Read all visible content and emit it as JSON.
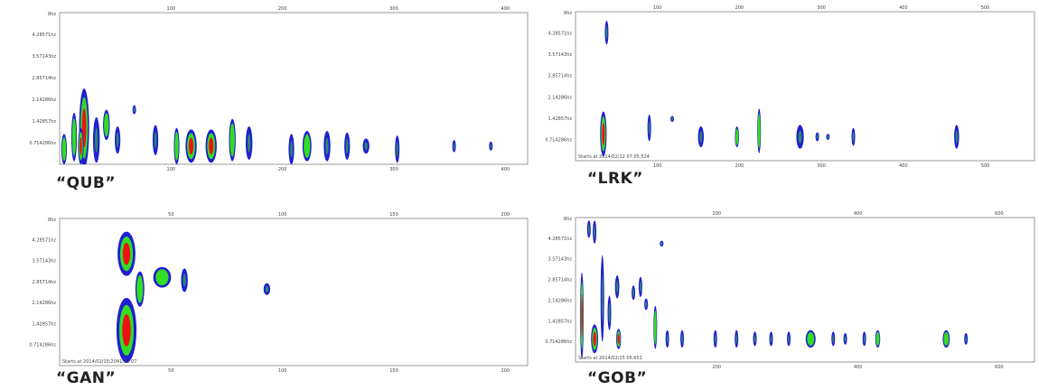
{
  "colors": {
    "outer": "#1f1fd0",
    "middle": "#33dd22",
    "core": "#ee1111",
    "frame": "#9a9a9a"
  },
  "chart_data": [
    {
      "type": "heatmap",
      "caption": "“QUB”",
      "y_top_label": "8hz",
      "yticks": [
        "4.28571hz",
        "3.57143hz",
        "2.85714hz",
        "2.14286hz",
        "1.42857hz",
        "0.714286hz"
      ],
      "xticks_top": [
        "100",
        "200",
        "300",
        "400"
      ],
      "xticks_bottom": [
        "100",
        "200",
        "300",
        "400"
      ],
      "starts_text": "",
      "xlim": [
        0,
        420
      ],
      "ylim": [
        0,
        5
      ],
      "blobs": [
        {
          "x": 4,
          "y": 0.5,
          "h": 1.0,
          "w": 5,
          "lvl": 2
        },
        {
          "x": 13,
          "y": 0.9,
          "h": 1.6,
          "w": 5,
          "lvl": 2
        },
        {
          "x": 22,
          "y": 1.2,
          "h": 2.6,
          "w": 9,
          "lvl": 3
        },
        {
          "x": 19,
          "y": 0.6,
          "h": 1.2,
          "w": 5,
          "lvl": 3
        },
        {
          "x": 33,
          "y": 0.8,
          "h": 1.5,
          "w": 6,
          "lvl": 1
        },
        {
          "x": 42,
          "y": 1.3,
          "h": 1.0,
          "w": 6,
          "lvl": 2
        },
        {
          "x": 52,
          "y": 0.8,
          "h": 0.9,
          "w": 5,
          "lvl": 1
        },
        {
          "x": 67,
          "y": 1.8,
          "h": 0.3,
          "w": 2,
          "lvl": 1
        },
        {
          "x": 86,
          "y": 0.8,
          "h": 1.0,
          "w": 5,
          "lvl": 1
        },
        {
          "x": 105,
          "y": 0.6,
          "h": 1.2,
          "w": 5,
          "lvl": 2
        },
        {
          "x": 118,
          "y": 0.6,
          "h": 1.1,
          "w": 10,
          "lvl": 3
        },
        {
          "x": 136,
          "y": 0.6,
          "h": 1.1,
          "w": 10,
          "lvl": 3
        },
        {
          "x": 155,
          "y": 0.8,
          "h": 1.4,
          "w": 6,
          "lvl": 2
        },
        {
          "x": 170,
          "y": 0.7,
          "h": 1.1,
          "w": 6,
          "lvl": 1
        },
        {
          "x": 208,
          "y": 0.5,
          "h": 1.0,
          "w": 5,
          "lvl": 1
        },
        {
          "x": 222,
          "y": 0.6,
          "h": 1.0,
          "w": 8,
          "lvl": 2
        },
        {
          "x": 240,
          "y": 0.6,
          "h": 1.0,
          "w": 6,
          "lvl": 1
        },
        {
          "x": 258,
          "y": 0.6,
          "h": 0.9,
          "w": 5,
          "lvl": 1
        },
        {
          "x": 275,
          "y": 0.6,
          "h": 0.5,
          "w": 6,
          "lvl": 1
        },
        {
          "x": 303,
          "y": 0.5,
          "h": 0.9,
          "w": 4,
          "lvl": 1
        },
        {
          "x": 354,
          "y": 0.6,
          "h": 0.4,
          "w": 3,
          "lvl": 1
        },
        {
          "x": 387,
          "y": 0.6,
          "h": 0.3,
          "w": 2,
          "lvl": 1
        }
      ]
    },
    {
      "type": "heatmap",
      "caption": "“LRK”",
      "y_top_label": "8hz",
      "yticks": [
        "4.28571hz",
        "3.57143hz",
        "2.85714hz",
        "2.14286hz",
        "1.42857hz",
        "0.714286hz"
      ],
      "xticks_top": [
        "100",
        "200",
        "300",
        "400",
        "500"
      ],
      "xticks_bottom": [
        "100",
        "200",
        "300",
        "400",
        "500"
      ],
      "starts_text": "Starts at 2014/02/12 07:05.524",
      "xlim": [
        0,
        560
      ],
      "ylim": [
        0,
        5
      ],
      "blobs": [
        {
          "x": 34,
          "y": 0.9,
          "h": 1.5,
          "w": 8,
          "lvl": 3
        },
        {
          "x": 38,
          "y": 4.3,
          "h": 0.8,
          "w": 4,
          "lvl": 1
        },
        {
          "x": 90,
          "y": 1.1,
          "h": 0.9,
          "w": 3,
          "lvl": 1
        },
        {
          "x": 118,
          "y": 1.4,
          "h": 0.2,
          "w": 2,
          "lvl": 1
        },
        {
          "x": 153,
          "y": 0.8,
          "h": 0.7,
          "w": 7,
          "lvl": 1
        },
        {
          "x": 197,
          "y": 0.8,
          "h": 0.7,
          "w": 5,
          "lvl": 2
        },
        {
          "x": 224,
          "y": 1.0,
          "h": 1.5,
          "w": 4,
          "lvl": 2
        },
        {
          "x": 274,
          "y": 0.8,
          "h": 0.8,
          "w": 9,
          "lvl": 1
        },
        {
          "x": 295,
          "y": 0.8,
          "h": 0.3,
          "w": 2,
          "lvl": 1
        },
        {
          "x": 308,
          "y": 0.8,
          "h": 0.2,
          "w": 1.5,
          "lvl": 1
        },
        {
          "x": 339,
          "y": 0.8,
          "h": 0.6,
          "w": 3,
          "lvl": 1
        },
        {
          "x": 465,
          "y": 0.8,
          "h": 0.8,
          "w": 6,
          "lvl": 1
        }
      ]
    },
    {
      "type": "heatmap",
      "caption": "“GAN”",
      "y_top_label": "8hz",
      "yticks": [
        "4.28571hz",
        "3.57143hz",
        "2.85714hz",
        "2.14286hz",
        "1.42857hz",
        "0.714286hz"
      ],
      "xticks_top": [
        "50",
        "100",
        "150",
        "200"
      ],
      "xticks_bottom": [
        "50",
        "100",
        "150",
        "200"
      ],
      "starts_text": "Starts at 2014/02/15/2041/12:07",
      "xlim": [
        0,
        210
      ],
      "ylim": [
        0,
        5
      ],
      "blobs": [
        {
          "x": 30,
          "y": 1.2,
          "h": 2.2,
          "w": 9,
          "lvl": 3
        },
        {
          "x": 30,
          "y": 3.8,
          "h": 1.5,
          "w": 8,
          "lvl": 3
        },
        {
          "x": 36,
          "y": 2.6,
          "h": 1.2,
          "w": 4,
          "lvl": 2
        },
        {
          "x": 46,
          "y": 3.0,
          "h": 0.7,
          "w": 8,
          "lvl": 2
        },
        {
          "x": 56,
          "y": 2.9,
          "h": 0.8,
          "w": 3,
          "lvl": 1
        },
        {
          "x": 93,
          "y": 2.6,
          "h": 0.4,
          "w": 3,
          "lvl": 1
        }
      ]
    },
    {
      "type": "heatmap",
      "caption": "“GOB”",
      "y_top_label": "8hz",
      "yticks": [
        "4.28571hz",
        "3.57143hz",
        "2.85714hz",
        "2.14286hz",
        "1.42857hz",
        "0.714286hz"
      ],
      "xticks_top": [
        "200",
        "400",
        "600"
      ],
      "xticks_bottom": [
        "200",
        "400",
        "600"
      ],
      "starts_text": "Starts at 2014/02/15 05.651",
      "xlim": [
        0,
        650
      ],
      "ylim": [
        0,
        5
      ],
      "blobs": [
        {
          "x": 9,
          "y": 1.6,
          "h": 3.0,
          "w": 3,
          "lvl": 3
        },
        {
          "x": 27,
          "y": 0.8,
          "h": 1.0,
          "w": 10,
          "lvl": 3
        },
        {
          "x": 19,
          "y": 4.6,
          "h": 0.6,
          "w": 3,
          "lvl": 1
        },
        {
          "x": 27,
          "y": 4.5,
          "h": 0.8,
          "w": 5,
          "lvl": 1
        },
        {
          "x": 38,
          "y": 2.2,
          "h": 3.0,
          "w": 4,
          "lvl": 1
        },
        {
          "x": 48,
          "y": 1.7,
          "h": 1.2,
          "w": 4,
          "lvl": 1
        },
        {
          "x": 61,
          "y": 0.8,
          "h": 0.7,
          "w": 7,
          "lvl": 3
        },
        {
          "x": 59,
          "y": 2.6,
          "h": 0.8,
          "w": 6,
          "lvl": 1
        },
        {
          "x": 82,
          "y": 2.4,
          "h": 0.5,
          "w": 4,
          "lvl": 1
        },
        {
          "x": 92,
          "y": 2.6,
          "h": 0.7,
          "w": 4,
          "lvl": 1
        },
        {
          "x": 100,
          "y": 2.0,
          "h": 0.4,
          "w": 3,
          "lvl": 1
        },
        {
          "x": 113,
          "y": 1.2,
          "h": 1.5,
          "w": 3,
          "lvl": 2
        },
        {
          "x": 122,
          "y": 4.1,
          "h": 0.2,
          "w": 2,
          "lvl": 1
        },
        {
          "x": 130,
          "y": 0.8,
          "h": 0.6,
          "w": 5,
          "lvl": 1
        },
        {
          "x": 151,
          "y": 0.8,
          "h": 0.6,
          "w": 5,
          "lvl": 1
        },
        {
          "x": 198,
          "y": 0.8,
          "h": 0.6,
          "w": 5,
          "lvl": 1
        },
        {
          "x": 228,
          "y": 0.8,
          "h": 0.6,
          "w": 4,
          "lvl": 1
        },
        {
          "x": 254,
          "y": 0.8,
          "h": 0.5,
          "w": 3,
          "lvl": 1
        },
        {
          "x": 277,
          "y": 0.8,
          "h": 0.5,
          "w": 3,
          "lvl": 1
        },
        {
          "x": 302,
          "y": 0.8,
          "h": 0.5,
          "w": 4,
          "lvl": 1
        },
        {
          "x": 333,
          "y": 0.8,
          "h": 0.6,
          "w": 14,
          "lvl": 2
        },
        {
          "x": 365,
          "y": 0.8,
          "h": 0.5,
          "w": 4,
          "lvl": 1
        },
        {
          "x": 382,
          "y": 0.8,
          "h": 0.4,
          "w": 3,
          "lvl": 1
        },
        {
          "x": 409,
          "y": 0.8,
          "h": 0.5,
          "w": 5,
          "lvl": 1
        },
        {
          "x": 428,
          "y": 0.8,
          "h": 0.6,
          "w": 7,
          "lvl": 2
        },
        {
          "x": 525,
          "y": 0.8,
          "h": 0.6,
          "w": 10,
          "lvl": 2
        },
        {
          "x": 553,
          "y": 0.8,
          "h": 0.4,
          "w": 3,
          "lvl": 1
        }
      ]
    }
  ]
}
